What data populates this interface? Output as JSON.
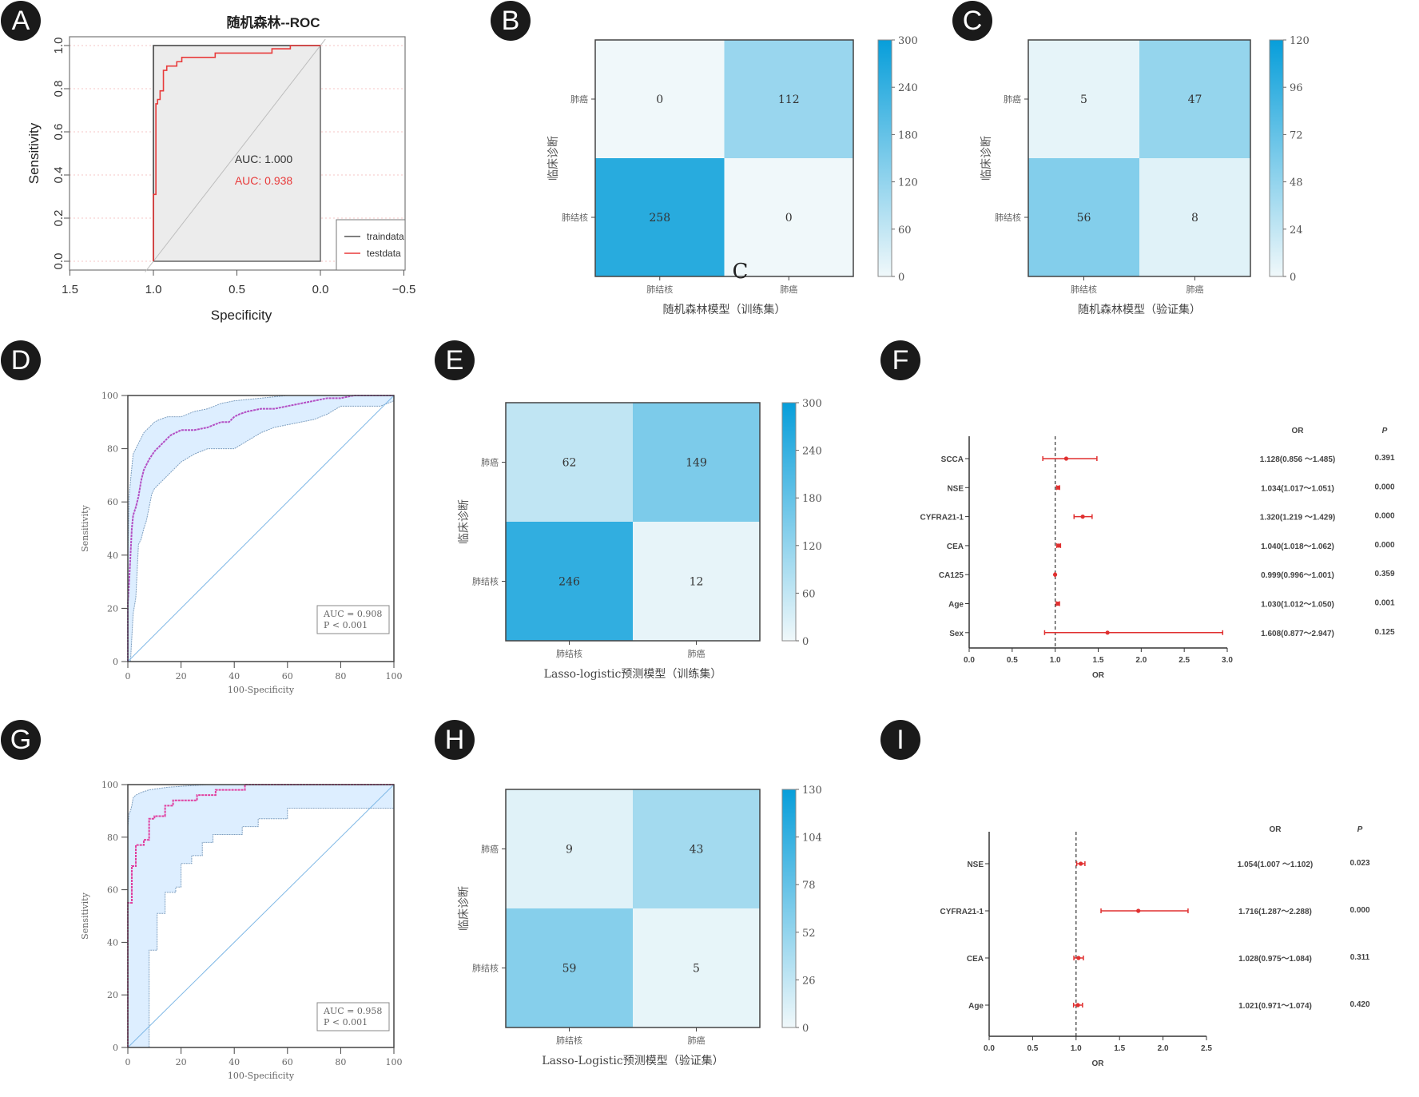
{
  "panels": [
    {
      "id": "A",
      "label": "A"
    },
    {
      "id": "B",
      "label": "B"
    },
    {
      "id": "C",
      "label": "C"
    },
    {
      "id": "D",
      "label": "D"
    },
    {
      "id": "E",
      "label": "E"
    },
    {
      "id": "F",
      "label": "F"
    },
    {
      "id": "G",
      "label": "G"
    },
    {
      "id": "H",
      "label": "H"
    },
    {
      "id": "I",
      "label": "I"
    }
  ],
  "chart_data": [
    {
      "panel": "A",
      "type": "line",
      "title": "随机森林--ROC",
      "xlabel": "Specificity",
      "ylabel": "Sensitivity",
      "xlim": [
        1.5,
        -0.5
      ],
      "ylim": [
        0,
        1
      ],
      "xticks": [
        "1.5",
        "1.0",
        "0.5",
        "0.0",
        "-0.5"
      ],
      "yticks": [
        "0.0",
        "0.2",
        "0.4",
        "0.6",
        "0.8",
        "1.0"
      ],
      "legend": {
        "position": "bottom-right",
        "entries": [
          "traindata",
          "testdata"
        ]
      },
      "annotations": [
        "AUC: 1.000",
        "AUC: 0.938"
      ],
      "colors": {
        "traindata": "#555555",
        "testdata": "#e83b3b"
      },
      "series": [
        {
          "name": "traindata",
          "x": [
            1.0,
            1.0,
            0.0
          ],
          "y": [
            0.0,
            1.0,
            1.0
          ]
        },
        {
          "name": "testdata",
          "x": [
            1.0,
            1.0,
            0.985,
            0.985,
            0.975,
            0.975,
            0.96,
            0.96,
            0.94,
            0.94,
            0.92,
            0.92,
            0.895,
            0.895,
            0.86,
            0.86,
            0.83,
            0.83,
            0.79,
            0.79,
            0.63,
            0.63,
            0.29,
            0.29,
            0.18,
            0.18,
            0.0
          ],
          "y": [
            0.0,
            0.31,
            0.31,
            0.73,
            0.73,
            0.75,
            0.75,
            0.79,
            0.79,
            0.885,
            0.885,
            0.905,
            0.905,
            0.905,
            0.905,
            0.925,
            0.925,
            0.945,
            0.945,
            0.945,
            0.945,
            0.965,
            0.965,
            0.985,
            0.985,
            1.0,
            1.0
          ]
        }
      ]
    },
    {
      "panel": "B",
      "type": "heatmap",
      "xlabel": "随机森林模型（训练集）",
      "ylabel": "临床诊断",
      "x_categories": [
        "肺结核",
        "肺癌"
      ],
      "y_categories": [
        "肺癌",
        "肺结核"
      ],
      "values": [
        [
          0,
          112
        ],
        [
          258,
          0
        ]
      ],
      "colorbar": {
        "min": 0,
        "max": 300,
        "ticks": [
          "0",
          "60",
          "120",
          "180",
          "240",
          "300"
        ]
      },
      "stray_annotation": "C"
    },
    {
      "panel": "C",
      "type": "heatmap",
      "xlabel": "随机森林模型（验证集）",
      "ylabel": "临床诊断",
      "x_categories": [
        "肺结核",
        "肺癌"
      ],
      "y_categories": [
        "肺癌",
        "肺结核"
      ],
      "values": [
        [
          5,
          47
        ],
        [
          56,
          8
        ]
      ],
      "colorbar": {
        "min": 0,
        "max": 120,
        "ticks": [
          "0",
          "24",
          "48",
          "72",
          "96",
          "120"
        ]
      }
    },
    {
      "panel": "D",
      "type": "line",
      "xlabel": "100-Specificity",
      "ylabel": "Sensitivity",
      "xlim": [
        0,
        100
      ],
      "ylim": [
        0,
        100
      ],
      "xticks": [
        "0",
        "20",
        "40",
        "60",
        "80",
        "100"
      ],
      "yticks": [
        "0",
        "20",
        "40",
        "60",
        "80",
        "100"
      ],
      "annotations": [
        "AUC = 0.908",
        "P < 0.001"
      ],
      "colors": {
        "roc": "#b34fc4",
        "ci_fill": "#ddeeff",
        "ci_line": "#7e9fc0",
        "diag": "#7fb8e6"
      },
      "series": [
        {
          "name": "roc",
          "x": [
            0,
            0,
            0.5,
            1,
            1.5,
            2,
            3,
            4,
            5,
            6,
            7,
            8,
            10,
            12,
            14,
            16,
            18,
            20,
            25,
            30,
            35,
            38,
            40,
            42,
            45,
            50,
            55,
            60,
            65,
            70,
            75,
            80,
            85,
            90,
            95,
            100
          ],
          "y": [
            0,
            22,
            30,
            40,
            50,
            55,
            58,
            62,
            68,
            72,
            74,
            76,
            79,
            81,
            83,
            85,
            86,
            87,
            87,
            88,
            90,
            90,
            92,
            93,
            94,
            95,
            95,
            96,
            97,
            98,
            99,
            99,
            100,
            100,
            100,
            100
          ]
        },
        {
          "name": "ci_upper",
          "x": [
            0,
            0.5,
            1,
            2,
            3,
            4,
            6,
            8,
            10,
            12,
            15,
            20,
            25,
            30,
            35,
            40,
            50,
            60,
            70,
            80,
            90,
            100
          ],
          "y": [
            40,
            62,
            68,
            78,
            80,
            82,
            86,
            88,
            90,
            91,
            92,
            92,
            94,
            95,
            97,
            98,
            99,
            100,
            100,
            100,
            100,
            100
          ]
        },
        {
          "name": "ci_lower",
          "x": [
            0,
            1,
            2,
            3,
            4,
            5,
            6,
            7,
            8,
            9,
            10,
            12,
            15,
            20,
            25,
            30,
            35,
            40,
            45,
            50,
            55,
            60,
            65,
            70,
            75,
            80,
            85,
            90,
            95,
            100
          ],
          "y": [
            0,
            0,
            18,
            24,
            44,
            46,
            50,
            53,
            58,
            63,
            65,
            67,
            70,
            75,
            78,
            80,
            80,
            80,
            83,
            86,
            88,
            89,
            90,
            91,
            93,
            96,
            96,
            96,
            96,
            98
          ]
        }
      ]
    },
    {
      "panel": "E",
      "type": "heatmap",
      "xlabel": "Lasso-logistic预测模型（训练集）",
      "ylabel": "临床诊断",
      "x_categories": [
        "肺结核",
        "肺癌"
      ],
      "y_categories": [
        "肺癌",
        "肺结核"
      ],
      "values": [
        [
          62,
          149
        ],
        [
          246,
          12
        ]
      ],
      "colorbar": {
        "min": 0,
        "max": 300,
        "ticks": [
          "0",
          "60",
          "120",
          "180",
          "240",
          "300"
        ]
      }
    },
    {
      "panel": "F",
      "type": "scatter",
      "subtype": "forest",
      "xlabel": "OR",
      "xlim": [
        0,
        3.0
      ],
      "xticks": [
        "0.0",
        "0.5",
        "1.0",
        "1.5",
        "2.0",
        "2.5",
        "3.0"
      ],
      "reference_line": 1.0,
      "table_headers": [
        "OR",
        "P"
      ],
      "rows": [
        {
          "label": "SCCA",
          "or": 1.128,
          "lo": 0.856,
          "hi": 1.485,
          "text": "1.128(0.856 ～1.485)",
          "p": "0.391"
        },
        {
          "label": "NSE",
          "or": 1.034,
          "lo": 1.017,
          "hi": 1.051,
          "text": "1.034(1.017～1.051)",
          "p": "0.000"
        },
        {
          "label": "CYFRA21-1",
          "or": 1.32,
          "lo": 1.219,
          "hi": 1.429,
          "text": "1.320(1.219 ～1.429)",
          "p": "0.000"
        },
        {
          "label": "CEA",
          "or": 1.04,
          "lo": 1.018,
          "hi": 1.062,
          "text": "1.040(1.018～1.062)",
          "p": "0.000"
        },
        {
          "label": "CA125",
          "or": 0.999,
          "lo": 0.996,
          "hi": 1.001,
          "text": "0.999(0.996～1.001)",
          "p": "0.359"
        },
        {
          "label": "Age",
          "or": 1.03,
          "lo": 1.012,
          "hi": 1.05,
          "text": "1.030(1.012～1.050)",
          "p": "0.001"
        },
        {
          "label": "Sex",
          "or": 1.608,
          "lo": 0.877,
          "hi": 2.947,
          "text": "1.608(0.877～2.947)",
          "p": "0.125"
        }
      ]
    },
    {
      "panel": "G",
      "type": "line",
      "xlabel": "100-Specificity",
      "ylabel": "Sensitivity",
      "xlim": [
        0,
        100
      ],
      "ylim": [
        0,
        100
      ],
      "xticks": [
        "0",
        "20",
        "40",
        "60",
        "80",
        "100"
      ],
      "yticks": [
        "0",
        "20",
        "40",
        "60",
        "80",
        "100"
      ],
      "annotations": [
        "AUC = 0.958",
        "P < 0.001"
      ],
      "colors": {
        "roc": "#e040a0",
        "ci_fill": "#ddeeff",
        "ci_line": "#7e9fc0",
        "diag": "#7fb8e6"
      },
      "series": [
        {
          "name": "roc",
          "x": [
            0,
            0,
            1.5,
            1.5,
            3,
            3,
            6,
            6,
            8,
            8,
            10,
            10,
            14,
            14,
            17,
            17,
            26,
            26,
            33,
            33,
            44,
            44,
            100
          ],
          "y": [
            0,
            55,
            55,
            69,
            69,
            77,
            77,
            79,
            79,
            87,
            87,
            88,
            88,
            92,
            92,
            94,
            94,
            96,
            96,
            98,
            98,
            100,
            100
          ]
        },
        {
          "name": "ci_upper",
          "x": [
            0,
            0.5,
            1,
            1.5,
            2,
            3,
            5,
            8,
            15,
            30,
            100
          ],
          "y": [
            84,
            89,
            90,
            92,
            95,
            96,
            97,
            98,
            99,
            100,
            100
          ]
        },
        {
          "name": "ci_lower",
          "x": [
            0,
            8,
            8,
            11,
            11,
            14,
            14,
            18,
            18,
            20,
            20,
            24,
            24,
            28,
            28,
            32,
            32,
            43,
            43,
            49,
            49,
            60,
            60,
            100
          ],
          "y": [
            0,
            0,
            37,
            37,
            51,
            51,
            59,
            59,
            61,
            61,
            70,
            70,
            73,
            73,
            78,
            78,
            81,
            81,
            84,
            84,
            87,
            87,
            91,
            91
          ]
        }
      ]
    },
    {
      "panel": "H",
      "type": "heatmap",
      "xlabel": "Lasso-Logistic预测模型（验证集）",
      "ylabel": "临床诊断",
      "x_categories": [
        "肺结核",
        "肺癌"
      ],
      "y_categories": [
        "肺癌",
        "肺结核"
      ],
      "values": [
        [
          9,
          43
        ],
        [
          59,
          5
        ]
      ],
      "colorbar": {
        "min": 0,
        "max": 130,
        "ticks": [
          "0",
          "26",
          "52",
          "78",
          "104",
          "130"
        ]
      }
    },
    {
      "panel": "I",
      "type": "scatter",
      "subtype": "forest",
      "xlabel": "OR",
      "xlim": [
        0,
        2.5
      ],
      "xticks": [
        "0.0",
        "0.5",
        "1.0",
        "1.5",
        "2.0",
        "2.5"
      ],
      "reference_line": 1.0,
      "table_headers": [
        "OR",
        "P"
      ],
      "rows": [
        {
          "label": "NSE",
          "or": 1.054,
          "lo": 1.007,
          "hi": 1.102,
          "text": "1.054(1.007 ～1.102)",
          "p": "0.023"
        },
        {
          "label": "CYFRA21-1",
          "or": 1.716,
          "lo": 1.287,
          "hi": 2.288,
          "text": "1.716(1.287～2.288)",
          "p": "0.000"
        },
        {
          "label": "CEA",
          "or": 1.028,
          "lo": 0.975,
          "hi": 1.084,
          "text": "1.028(0.975～1.084)",
          "p": "0.311"
        },
        {
          "label": "Age",
          "or": 1.021,
          "lo": 0.971,
          "hi": 1.074,
          "text": "1.021(0.971～1.074)",
          "p": "0.420"
        }
      ]
    }
  ]
}
